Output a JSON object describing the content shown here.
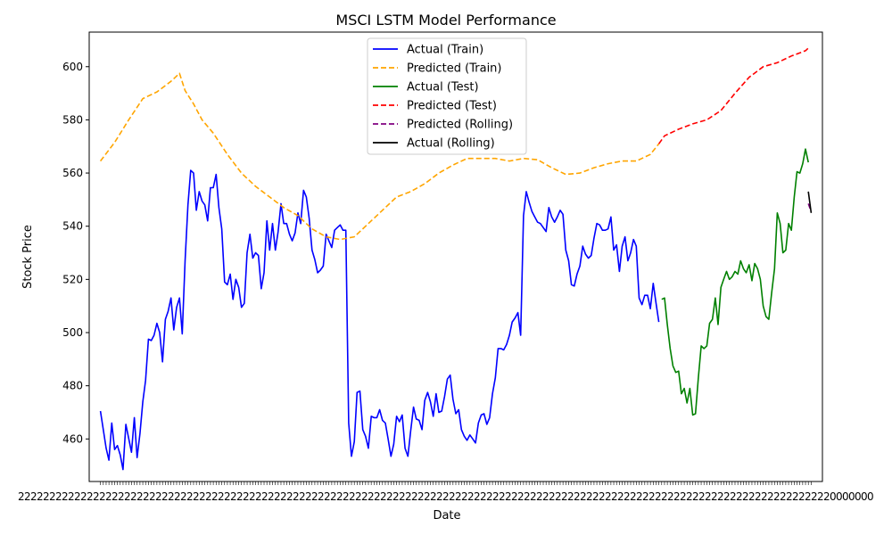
{
  "chart_data": {
    "type": "line",
    "title": "MSCI LSTM Model Performance",
    "xlabel": "Date",
    "ylabel": "Stock Price",
    "ylim": [
      444,
      613
    ],
    "yticks": [
      460,
      480,
      500,
      520,
      540,
      560,
      580,
      600
    ],
    "legend_position": "top-center",
    "grid": false,
    "series": [
      {
        "name": "Actual (Train)",
        "color": "#0000ff",
        "dash": "solid",
        "points": [
          [
            0,
            470.5
          ],
          [
            2,
            456.5
          ],
          [
            3,
            452
          ],
          [
            4,
            466
          ],
          [
            5,
            456
          ],
          [
            6,
            457.5
          ],
          [
            7,
            454
          ],
          [
            8,
            448.5
          ],
          [
            9,
            465.5
          ],
          [
            11,
            455
          ],
          [
            12,
            468
          ],
          [
            13,
            453
          ],
          [
            14,
            462
          ],
          [
            15,
            474
          ],
          [
            16,
            482
          ],
          [
            17,
            497.5
          ],
          [
            18,
            497
          ],
          [
            19,
            499
          ],
          [
            20,
            503.5
          ],
          [
            21,
            500
          ],
          [
            22,
            489
          ],
          [
            23,
            505
          ],
          [
            24,
            508
          ],
          [
            25,
            513
          ],
          [
            26,
            501
          ],
          [
            27,
            509.5
          ],
          [
            28,
            513
          ],
          [
            29,
            499.5
          ],
          [
            30,
            527
          ],
          [
            31,
            548
          ],
          [
            32,
            561
          ],
          [
            33,
            560
          ],
          [
            34,
            546
          ],
          [
            35,
            553
          ],
          [
            36,
            549.5
          ],
          [
            37,
            548
          ],
          [
            38,
            542
          ],
          [
            39,
            554.5
          ],
          [
            40,
            554.5
          ],
          [
            41,
            559.5
          ],
          [
            42,
            547
          ],
          [
            43,
            539
          ],
          [
            44,
            519
          ],
          [
            45,
            518
          ],
          [
            46,
            522
          ],
          [
            47,
            512.5
          ],
          [
            48,
            520
          ],
          [
            49,
            517
          ],
          [
            50,
            509.5
          ],
          [
            51,
            511
          ],
          [
            52,
            530
          ],
          [
            53,
            537
          ],
          [
            54,
            528
          ],
          [
            55,
            530
          ],
          [
            56,
            529
          ],
          [
            57,
            516.5
          ],
          [
            58,
            522.5
          ],
          [
            59,
            542
          ],
          [
            60,
            531
          ],
          [
            61,
            541
          ],
          [
            62,
            531
          ],
          [
            63,
            538
          ],
          [
            64,
            548.5
          ],
          [
            65,
            541
          ],
          [
            66,
            541
          ],
          [
            67,
            537
          ],
          [
            68,
            534.5
          ],
          [
            69,
            537.5
          ],
          [
            70,
            545
          ],
          [
            71,
            541
          ],
          [
            72,
            553.5
          ],
          [
            73,
            551
          ],
          [
            74,
            543
          ],
          [
            75,
            531
          ],
          [
            76,
            527.5
          ],
          [
            77,
            522.5
          ],
          [
            78,
            523.5
          ],
          [
            79,
            525
          ],
          [
            80,
            537
          ],
          [
            81,
            534.5
          ],
          [
            82,
            532
          ],
          [
            83,
            538.5
          ],
          [
            84,
            539.5
          ],
          [
            85,
            540.5
          ],
          [
            86,
            538.5
          ],
          [
            87,
            538.5
          ],
          [
            88,
            466
          ],
          [
            89,
            453.5
          ],
          [
            90,
            459
          ],
          [
            91,
            477.5
          ],
          [
            92,
            478
          ],
          [
            93,
            463.5
          ],
          [
            94,
            461
          ],
          [
            95,
            456.5
          ],
          [
            96,
            468.5
          ],
          [
            97,
            468
          ],
          [
            98,
            468
          ],
          [
            99,
            471
          ],
          [
            100,
            467
          ],
          [
            101,
            466
          ],
          [
            102,
            460
          ],
          [
            103,
            453.5
          ],
          [
            104,
            458
          ],
          [
            105,
            468.5
          ],
          [
            106,
            466.5
          ],
          [
            107,
            469
          ],
          [
            108,
            456.5
          ],
          [
            109,
            453.5
          ],
          [
            110,
            463
          ],
          [
            111,
            472
          ],
          [
            112,
            467.5
          ],
          [
            113,
            467
          ],
          [
            114,
            463.5
          ],
          [
            115,
            474.5
          ],
          [
            116,
            477.5
          ],
          [
            117,
            474
          ],
          [
            118,
            468.5
          ],
          [
            119,
            477
          ],
          [
            120,
            470
          ],
          [
            121,
            470.5
          ],
          [
            122,
            476
          ],
          [
            123,
            482.5
          ],
          [
            124,
            484
          ],
          [
            125,
            475
          ],
          [
            126,
            469.5
          ],
          [
            127,
            471
          ],
          [
            128,
            463.5
          ],
          [
            129,
            461
          ],
          [
            130,
            459.5
          ],
          [
            131,
            461.5
          ],
          [
            132,
            460
          ],
          [
            133,
            458.5
          ],
          [
            134,
            466
          ],
          [
            135,
            469
          ],
          [
            136,
            469.5
          ],
          [
            137,
            465.5
          ],
          [
            138,
            468
          ],
          [
            139,
            477
          ],
          [
            140,
            483
          ],
          [
            141,
            494
          ],
          [
            142,
            494
          ],
          [
            143,
            493.5
          ],
          [
            144,
            495.5
          ],
          [
            145,
            499
          ],
          [
            146,
            504
          ],
          [
            147,
            505.5
          ],
          [
            148,
            507.5
          ],
          [
            149,
            499
          ],
          [
            150,
            544
          ],
          [
            151,
            553
          ],
          [
            152,
            549
          ],
          [
            153,
            545.5
          ],
          [
            154,
            543.5
          ],
          [
            155,
            541.5
          ],
          [
            156,
            541
          ],
          [
            157,
            539.5
          ],
          [
            158,
            538
          ],
          [
            159,
            547
          ],
          [
            160,
            543.5
          ],
          [
            161,
            541.5
          ],
          [
            162,
            543.5
          ],
          [
            163,
            546
          ],
          [
            164,
            544.5
          ],
          [
            165,
            531
          ],
          [
            166,
            527
          ],
          [
            167,
            518
          ],
          [
            168,
            517.5
          ],
          [
            169,
            522
          ],
          [
            170,
            525
          ],
          [
            171,
            532.5
          ],
          [
            172,
            529.5
          ],
          [
            173,
            528
          ],
          [
            174,
            529
          ],
          [
            175,
            535.5
          ],
          [
            176,
            541
          ],
          [
            177,
            540.5
          ],
          [
            178,
            538.5
          ],
          [
            179,
            538.5
          ],
          [
            180,
            539
          ],
          [
            181,
            543.5
          ],
          [
            182,
            531
          ],
          [
            183,
            533
          ],
          [
            184,
            523
          ],
          [
            185,
            532.5
          ],
          [
            186,
            536
          ],
          [
            187,
            527
          ],
          [
            188,
            530
          ],
          [
            189,
            535
          ],
          [
            190,
            532.5
          ],
          [
            191,
            513
          ],
          [
            192,
            510.5
          ],
          [
            193,
            514
          ],
          [
            194,
            514
          ],
          [
            195,
            509
          ],
          [
            196,
            518.5
          ],
          [
            197,
            511
          ],
          [
            198,
            504
          ]
        ]
      },
      {
        "name": "Predicted (Train)",
        "color": "#ffa500",
        "dash": "6,3",
        "points": [
          [
            0,
            564.5
          ],
          [
            5,
            571.5
          ],
          [
            10,
            580
          ],
          [
            15,
            588
          ],
          [
            20,
            590.5
          ],
          [
            25,
            594.5
          ],
          [
            28,
            597.5
          ],
          [
            30,
            591
          ],
          [
            33,
            586
          ],
          [
            36,
            580
          ],
          [
            40,
            575
          ],
          [
            45,
            567
          ],
          [
            50,
            560
          ],
          [
            55,
            555
          ],
          [
            60,
            551
          ],
          [
            65,
            547
          ],
          [
            70,
            544
          ],
          [
            75,
            539
          ],
          [
            80,
            536
          ],
          [
            85,
            535
          ],
          [
            90,
            536
          ],
          [
            95,
            541
          ],
          [
            100,
            546
          ],
          [
            105,
            551
          ],
          [
            110,
            553
          ],
          [
            115,
            556
          ],
          [
            120,
            560
          ],
          [
            125,
            563
          ],
          [
            130,
            565.5
          ],
          [
            135,
            565.5
          ],
          [
            140,
            565.5
          ],
          [
            145,
            564.5
          ],
          [
            150,
            565.5
          ],
          [
            155,
            565
          ],
          [
            160,
            562
          ],
          [
            165,
            559.5
          ],
          [
            170,
            560
          ],
          [
            175,
            562
          ],
          [
            180,
            563.5
          ],
          [
            185,
            564.5
          ],
          [
            190,
            564.5
          ],
          [
            195,
            567
          ],
          [
            198,
            571
          ]
        ]
      },
      {
        "name": "Actual (Test)",
        "color": "#008000",
        "dash": "solid",
        "points": [
          [
            199,
            512.5
          ],
          [
            200,
            513
          ],
          [
            201,
            503
          ],
          [
            202,
            494
          ],
          [
            203,
            487.5
          ],
          [
            204,
            485
          ],
          [
            205,
            485.5
          ],
          [
            206,
            477
          ],
          [
            207,
            479
          ],
          [
            208,
            473.5
          ],
          [
            209,
            479
          ],
          [
            210,
            469
          ],
          [
            211,
            469.5
          ],
          [
            212,
            483
          ],
          [
            213,
            495
          ],
          [
            214,
            494
          ],
          [
            215,
            495
          ],
          [
            216,
            503.5
          ],
          [
            217,
            505
          ],
          [
            218,
            513
          ],
          [
            219,
            503
          ],
          [
            220,
            517
          ],
          [
            221,
            520
          ],
          [
            222,
            523
          ],
          [
            223,
            520
          ],
          [
            224,
            521
          ],
          [
            225,
            523
          ],
          [
            226,
            522
          ],
          [
            227,
            527
          ],
          [
            228,
            524
          ],
          [
            229,
            522.5
          ],
          [
            230,
            525.5
          ],
          [
            231,
            519.5
          ],
          [
            232,
            526
          ],
          [
            233,
            524
          ],
          [
            234,
            520
          ],
          [
            235,
            510
          ],
          [
            236,
            506
          ],
          [
            237,
            505
          ],
          [
            238,
            515
          ],
          [
            239,
            524
          ],
          [
            240,
            545
          ],
          [
            241,
            541
          ],
          [
            242,
            530
          ],
          [
            243,
            531
          ],
          [
            244,
            541
          ],
          [
            245,
            538.5
          ],
          [
            246,
            551
          ],
          [
            247,
            560.5
          ],
          [
            248,
            560
          ],
          [
            249,
            563.5
          ],
          [
            250,
            569
          ],
          [
            251,
            564
          ]
        ]
      },
      {
        "name": "Predicted (Test)",
        "color": "#ff0000",
        "dash": "6,3",
        "points": [
          [
            198,
            571
          ],
          [
            200,
            574
          ],
          [
            205,
            576.5
          ],
          [
            210,
            578.5
          ],
          [
            215,
            580
          ],
          [
            220,
            583.5
          ],
          [
            225,
            590
          ],
          [
            230,
            596
          ],
          [
            235,
            600
          ],
          [
            240,
            601.5
          ],
          [
            245,
            604
          ],
          [
            250,
            606
          ],
          [
            251,
            607
          ]
        ]
      },
      {
        "name": "Predicted (Rolling)",
        "color": "#800080",
        "dash": "6,3",
        "points": [
          [
            251,
            548.5
          ],
          [
            252,
            545.5
          ]
        ]
      },
      {
        "name": "Actual (Rolling)",
        "color": "#000000",
        "dash": "solid",
        "points": [
          [
            251,
            553
          ],
          [
            252,
            545
          ]
        ]
      }
    ],
    "x_tick_count": 253,
    "x_tick_labels": [
      "2",
      "0"
    ]
  }
}
